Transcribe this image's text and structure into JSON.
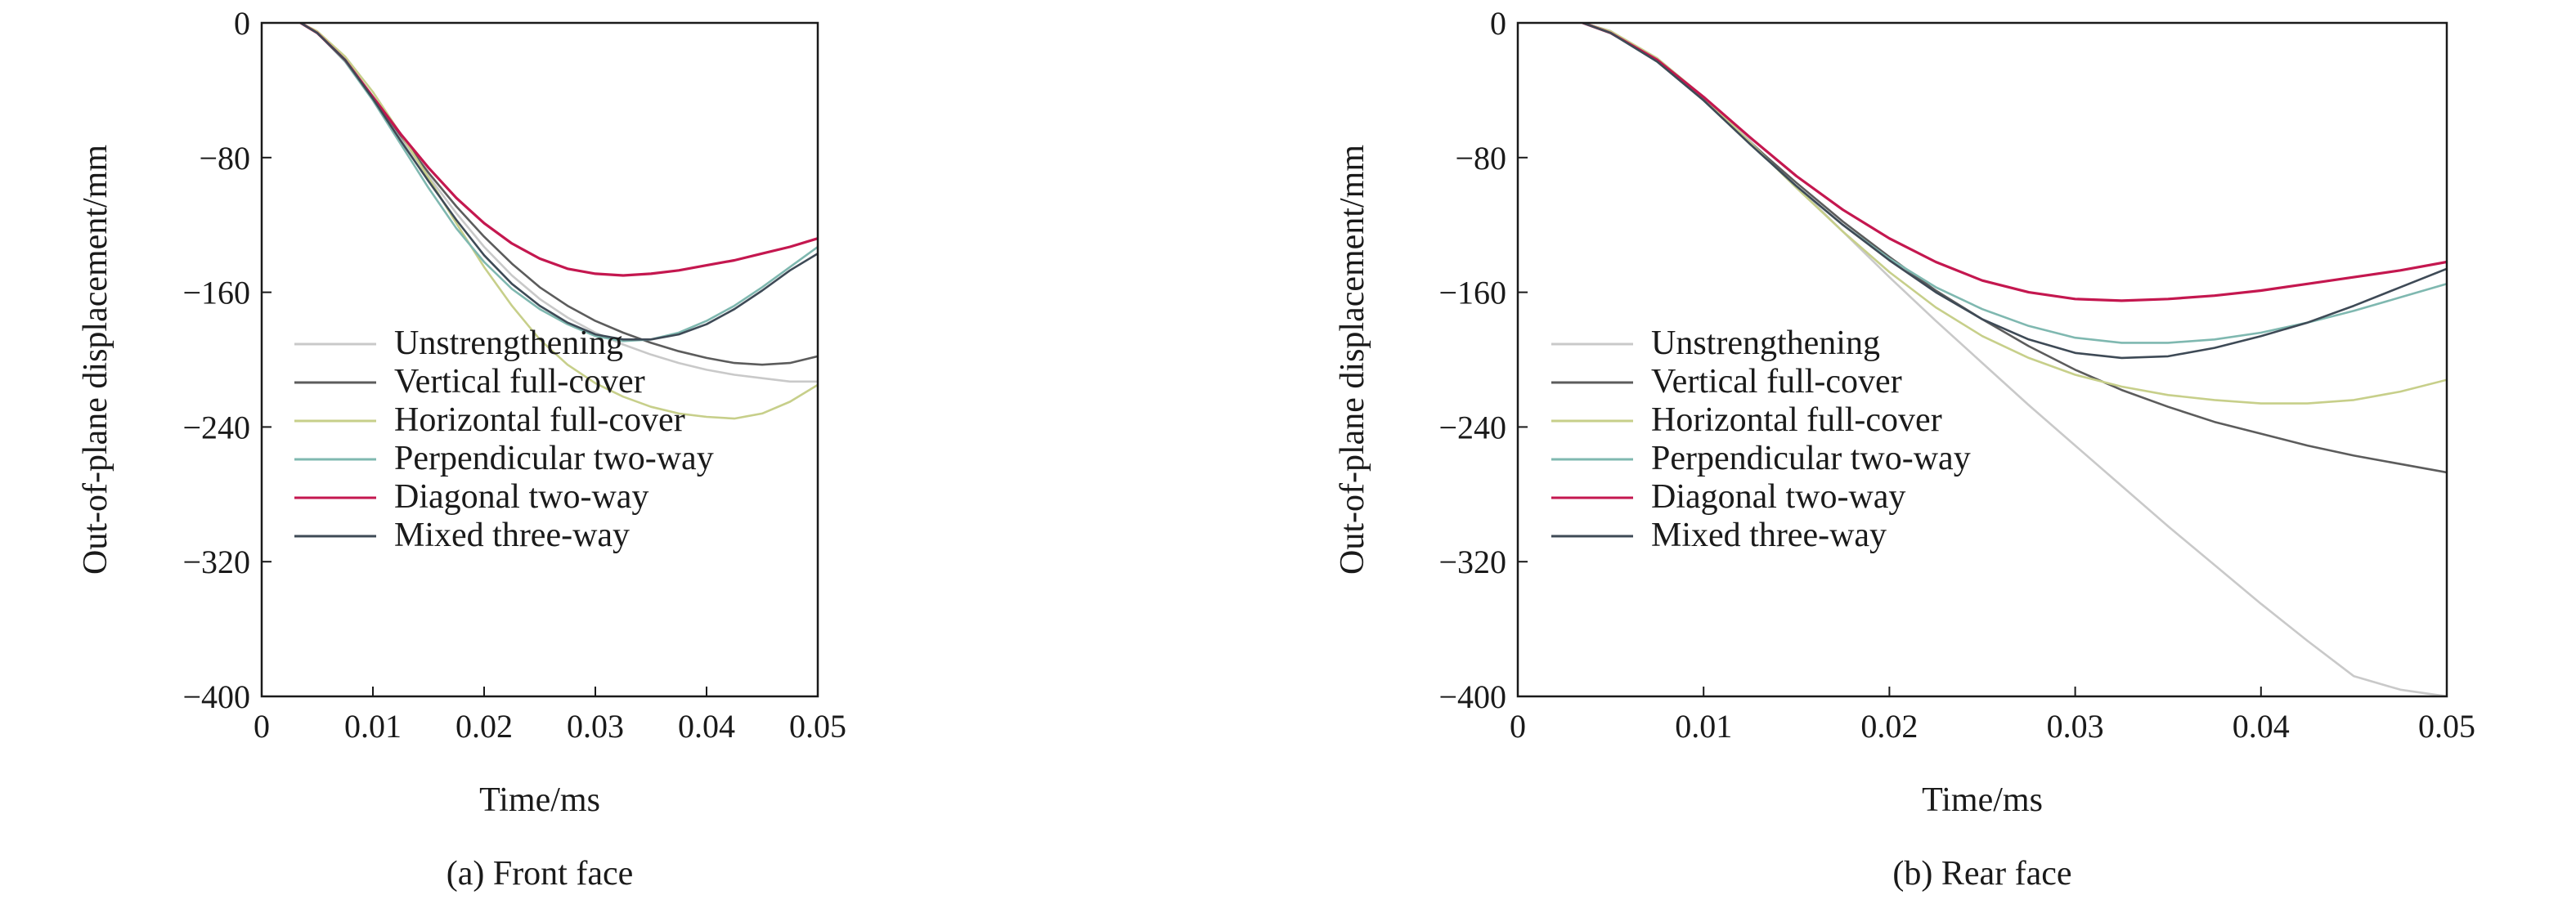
{
  "series_colors": {
    "Unstrengthening": "#c9c9c9",
    "Vertical full-cover": "#5c5c5c",
    "Horizontal full-cover": "#c7cf8a",
    "Perpendicular two-way": "#7fb8b0",
    "Diagonal two-way": "#c4174f",
    "Mixed three-way": "#3e4a56"
  },
  "chart_data": [
    {
      "type": "line",
      "caption": "(a) Front face",
      "xlabel": "Time/ms",
      "ylabel": "Out-of-plane displacement/mm",
      "xlim": [
        0,
        0.05
      ],
      "ylim": [
        -400,
        0
      ],
      "xticks": [
        0,
        0.01,
        0.02,
        0.03,
        0.04,
        0.05
      ],
      "xtick_labels": [
        "0",
        "0.01",
        "0.02",
        "0.03",
        "0.04",
        "0.05"
      ],
      "yticks": [
        0,
        -80,
        -160,
        -240,
        -320,
        -400
      ],
      "ytick_labels": [
        "0",
        "−80",
        "−160",
        "−240",
        "−320",
        "−400"
      ],
      "grid": false,
      "legend": "lower-left",
      "x": [
        0.0035,
        0.005,
        0.0075,
        0.01,
        0.0125,
        0.015,
        0.0175,
        0.02,
        0.0225,
        0.025,
        0.0275,
        0.03,
        0.0325,
        0.035,
        0.0375,
        0.04,
        0.0425,
        0.045,
        0.0475,
        0.05
      ],
      "series": [
        {
          "name": "Unstrengthening",
          "values": [
            0,
            -6,
            -22,
            -44,
            -68,
            -91,
            -113,
            -133,
            -150,
            -164,
            -175,
            -184,
            -191,
            -197,
            -202,
            -206,
            -209,
            -211,
            -213,
            -213
          ]
        },
        {
          "name": "Vertical full-cover",
          "values": [
            0,
            -6,
            -22,
            -44,
            -67,
            -89,
            -109,
            -127,
            -143,
            -157,
            -168,
            -177,
            -184,
            -190,
            -195,
            -199,
            -202,
            -203,
            -202,
            -198
          ]
        },
        {
          "name": "Horizontal full-cover",
          "values": [
            0,
            -5,
            -20,
            -41,
            -66,
            -92,
            -119,
            -145,
            -168,
            -188,
            -203,
            -214,
            -222,
            -228,
            -232,
            -234,
            -235,
            -232,
            -225,
            -215
          ]
        },
        {
          "name": "Perpendicular two-way",
          "values": [
            0,
            -6,
            -23,
            -46,
            -72,
            -98,
            -122,
            -142,
            -158,
            -170,
            -179,
            -186,
            -189,
            -188,
            -184,
            -177,
            -168,
            -157,
            -145,
            -133
          ]
        },
        {
          "name": "Diagonal two-way",
          "values": [
            0,
            -6,
            -22,
            -44,
            -66,
            -86,
            -104,
            -119,
            -131,
            -140,
            -146,
            -149,
            -150,
            -149,
            -147,
            -144,
            -141,
            -137,
            -133,
            -128
          ]
        },
        {
          "name": "Mixed three-way",
          "values": [
            0,
            -6,
            -22,
            -45,
            -70,
            -94,
            -117,
            -138,
            -155,
            -168,
            -178,
            -185,
            -188,
            -188,
            -185,
            -179,
            -170,
            -159,
            -147,
            -137
          ]
        }
      ]
    },
    {
      "type": "line",
      "caption": "(b) Rear face",
      "xlabel": "Time/ms",
      "ylabel": "Out-of-plane displacement/mm",
      "xlim": [
        0,
        0.05
      ],
      "ylim": [
        -400,
        0
      ],
      "xticks": [
        0,
        0.01,
        0.02,
        0.03,
        0.04,
        0.05
      ],
      "xtick_labels": [
        "0",
        "0.01",
        "0.02",
        "0.03",
        "0.04",
        "0.05"
      ],
      "yticks": [
        0,
        -80,
        -160,
        -240,
        -320,
        -400
      ],
      "ytick_labels": [
        "0",
        "−80",
        "−160",
        "−240",
        "−320",
        "−400"
      ],
      "grid": false,
      "legend": "lower-left",
      "x": [
        0.0035,
        0.005,
        0.0075,
        0.01,
        0.0125,
        0.015,
        0.0175,
        0.02,
        0.0225,
        0.025,
        0.0275,
        0.03,
        0.0325,
        0.035,
        0.0375,
        0.04,
        0.0425,
        0.045,
        0.0475,
        0.05
      ],
      "series": [
        {
          "name": "Unstrengthening",
          "values": [
            0,
            -5,
            -21,
            -44,
            -70,
            -97,
            -124,
            -151,
            -177,
            -202,
            -227,
            -251,
            -275,
            -299,
            -322,
            -345,
            -367,
            -388,
            -396,
            -400
          ]
        },
        {
          "name": "Vertical full-cover",
          "values": [
            0,
            -5,
            -22,
            -45,
            -71,
            -95,
            -118,
            -139,
            -159,
            -176,
            -192,
            -206,
            -218,
            -228,
            -237,
            -244,
            -251,
            -257,
            -262,
            -267
          ]
        },
        {
          "name": "Horizontal full-cover",
          "values": [
            0,
            -5,
            -21,
            -44,
            -71,
            -98,
            -124,
            -148,
            -169,
            -186,
            -199,
            -209,
            -216,
            -221,
            -224,
            -226,
            -226,
            -224,
            -219,
            -212
          ]
        },
        {
          "name": "Perpendicular two-way",
          "values": [
            0,
            -6,
            -23,
            -46,
            -72,
            -97,
            -120,
            -140,
            -157,
            -170,
            -180,
            -187,
            -190,
            -190,
            -188,
            -184,
            -178,
            -171,
            -163,
            -155
          ]
        },
        {
          "name": "Diagonal two-way",
          "values": [
            0,
            -6,
            -22,
            -44,
            -68,
            -91,
            -111,
            -128,
            -142,
            -153,
            -160,
            -164,
            -165,
            -164,
            -162,
            -159,
            -155,
            -151,
            -147,
            -142
          ]
        },
        {
          "name": "Mixed three-way",
          "values": [
            0,
            -6,
            -23,
            -46,
            -72,
            -97,
            -120,
            -141,
            -160,
            -176,
            -188,
            -196,
            -199,
            -198,
            -193,
            -186,
            -178,
            -168,
            -157,
            -146
          ]
        }
      ]
    }
  ]
}
